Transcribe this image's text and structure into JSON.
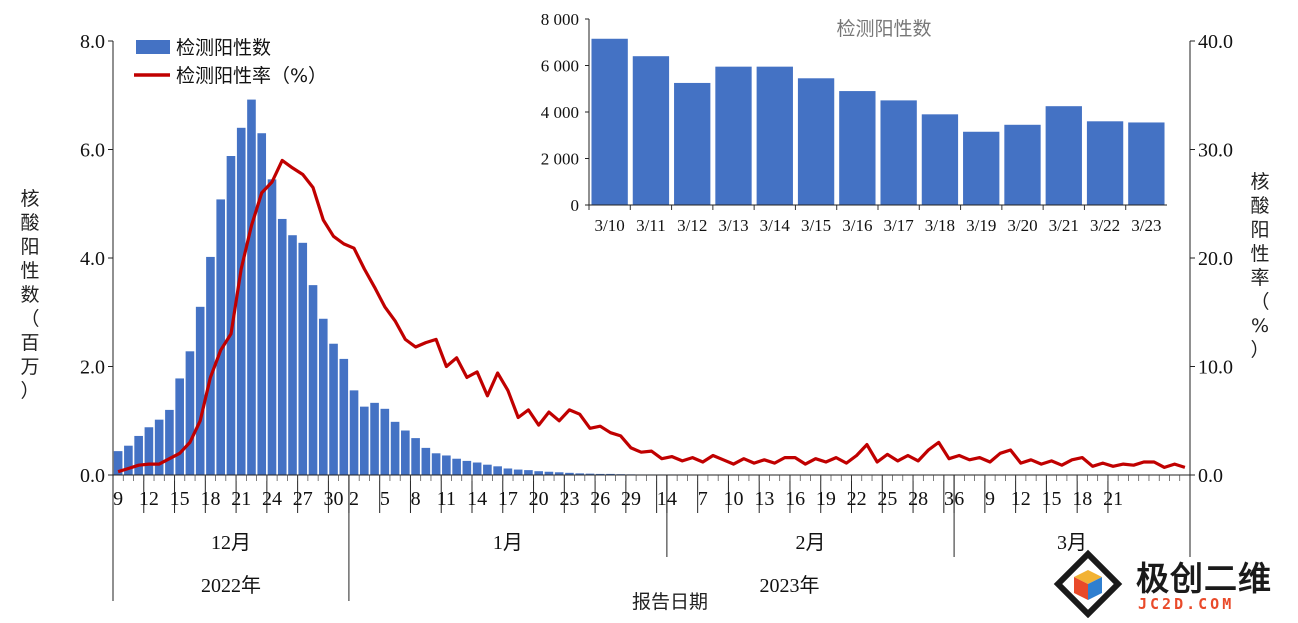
{
  "chart_data": [
    {
      "type": "bar+line",
      "xlabel": "报告日期",
      "ylabel_left": "核酸阳性数（百万）",
      "ylabel_right": "核酸阳性率（%）",
      "ylim_left": [
        0,
        8
      ],
      "ylim_right": [
        0,
        40
      ],
      "yticks_left": [
        "0.0",
        "2.0",
        "4.0",
        "6.0",
        "8.0"
      ],
      "yticks_right": [
        "0.0",
        "10.0",
        "20.0",
        "30.0",
        "40.0"
      ],
      "legend_position": "top-left",
      "x_day_labels": [
        "9",
        "12",
        "15",
        "18",
        "21",
        "24",
        "27",
        "30",
        "2",
        "5",
        "8",
        "11",
        "14",
        "17",
        "20",
        "23",
        "26",
        "29",
        "1",
        "4",
        "7",
        "10",
        "13",
        "16",
        "19",
        "22",
        "25",
        "28",
        "3",
        "6",
        "9",
        "12",
        "15",
        "18",
        "21"
      ],
      "month_labels": [
        "12月",
        "1月",
        "2月",
        "3月"
      ],
      "year_labels": [
        "2022年",
        "2023年"
      ],
      "series": [
        {
          "name": "检测阳性数",
          "kind": "bar",
          "color": "#4472C4",
          "values": [
            0.44,
            0.54,
            0.72,
            0.88,
            1.02,
            1.2,
            1.78,
            2.28,
            3.1,
            4.02,
            5.08,
            5.88,
            6.4,
            6.92,
            6.3,
            5.45,
            4.72,
            4.42,
            4.28,
            3.5,
            2.88,
            2.42,
            2.14,
            1.56,
            1.26,
            1.33,
            1.22,
            0.98,
            0.82,
            0.68,
            0.5,
            0.4,
            0.36,
            0.3,
            0.26,
            0.23,
            0.19,
            0.16,
            0.12,
            0.1,
            0.09,
            0.07,
            0.06,
            0.05,
            0.04,
            0.03,
            0.025,
            0.02,
            0.02,
            0.015,
            0.012,
            0.01,
            0.01,
            0.01,
            0.01,
            0.01,
            0.008,
            0.008,
            0.008,
            0.008,
            0.008,
            0.008,
            0.008,
            0.008,
            0.007,
            0.007,
            0.007,
            0.007,
            0.006,
            0.006,
            0.006,
            0.006,
            0.006,
            0.006,
            0.006,
            0.006,
            0.006,
            0.006,
            0.006,
            0.006,
            0.005,
            0.005,
            0.005,
            0.005,
            0.005,
            0.005,
            0.005,
            0.005,
            0.005,
            0.005,
            0.005,
            0.005,
            0.005,
            0.004,
            0.004,
            0.004,
            0.004,
            0.004,
            0.004,
            0.004,
            0.004,
            0.004,
            0.004,
            0.004,
            0.004
          ]
        },
        {
          "name": "检测阳性率（%）",
          "kind": "line",
          "axis": "right",
          "color": "#C00000",
          "values": [
            0.3,
            0.6,
            0.9,
            1.0,
            1.0,
            1.5,
            2.0,
            3.0,
            5.0,
            9.0,
            11.5,
            13.0,
            19.0,
            23.0,
            26.0,
            27.0,
            29.0,
            28.3,
            27.7,
            26.5,
            23.5,
            22.0,
            21.3,
            20.9,
            19.0,
            17.3,
            15.5,
            14.2,
            12.5,
            11.8,
            12.2,
            12.5,
            10.0,
            10.8,
            9.0,
            9.5,
            7.3,
            9.4,
            7.8,
            5.3,
            6.0,
            4.6,
            5.8,
            5.0,
            6.0,
            5.6,
            4.3,
            4.5,
            3.9,
            3.6,
            2.5,
            2.1,
            2.2,
            1.5,
            1.7,
            1.3,
            1.6,
            1.2,
            1.8,
            1.4,
            1.0,
            1.5,
            1.1,
            1.4,
            1.1,
            1.6,
            1.6,
            1.0,
            1.5,
            1.2,
            1.6,
            1.1,
            1.8,
            2.8,
            1.2,
            1.9,
            1.3,
            1.8,
            1.3,
            2.3,
            3.0,
            1.5,
            1.8,
            1.4,
            1.6,
            1.2,
            2.0,
            2.3,
            1.1,
            1.4,
            1.0,
            1.3,
            0.9,
            1.4,
            1.6,
            0.8,
            1.1,
            0.8,
            1.0,
            0.9,
            1.2,
            1.2,
            0.7,
            1.0,
            0.7
          ]
        }
      ]
    },
    {
      "type": "bar",
      "title": "检测阳性数",
      "categories": [
        "3/10",
        "3/11",
        "3/12",
        "3/13",
        "3/14",
        "3/15",
        "3/16",
        "3/17",
        "3/18",
        "3/19",
        "3/20",
        "3/21",
        "3/22",
        "3/23"
      ],
      "values": [
        7150,
        6400,
        5250,
        5950,
        5950,
        5450,
        4900,
        4500,
        3900,
        3150,
        3450,
        4250,
        3600,
        3550
      ],
      "ylim": [
        0,
        8000
      ],
      "yticks": [
        "0",
        "2 000",
        "4 000",
        "6 000",
        "8 000"
      ],
      "color": "#4472C4"
    }
  ],
  "watermark": {
    "title": "极创二维",
    "url": "JC2D.COM"
  }
}
